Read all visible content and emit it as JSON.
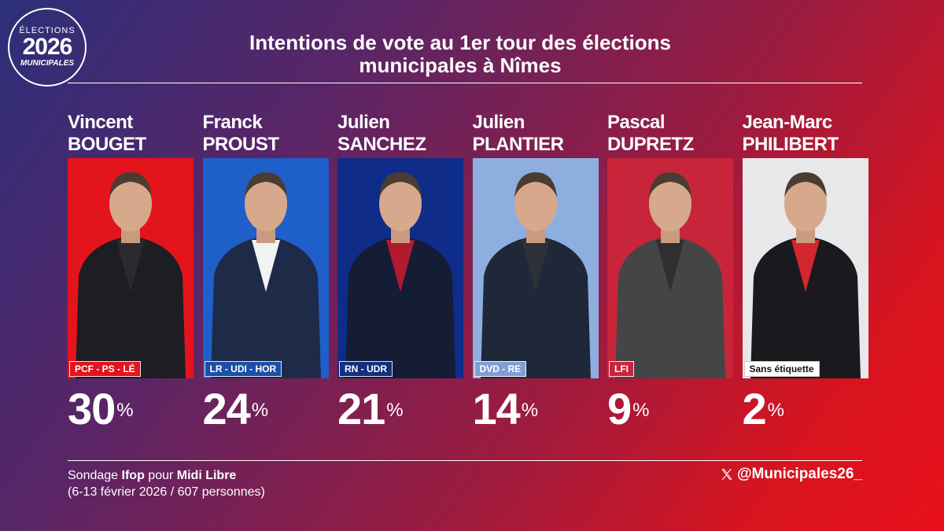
{
  "logo": {
    "line1": "ÉLECTIONS",
    "line2": "2026",
    "line3": "MUNICIPALES"
  },
  "title": {
    "line1": "Intentions de vote au 1er tour des élections",
    "line2": "municipales à Nîmes"
  },
  "chart_data": {
    "type": "bar",
    "title": "Intentions de vote au 1er tour des élections municipales à Nîmes",
    "unit": "%",
    "categories": [
      "Vincent BOUGET",
      "Franck PROUST",
      "Julien SANCHEZ",
      "Julien PLANTIER",
      "Pascal DUPRETZ",
      "Jean-Marc PHILIBERT"
    ],
    "values": [
      30,
      24,
      21,
      14,
      9,
      2
    ]
  },
  "candidates": [
    {
      "first": "Vincent",
      "last": "BOUGET",
      "party": "PCF - PS - LÉ",
      "value": "30",
      "sign": "%",
      "bg": "#e3141c",
      "party_bg": "#e3141c"
    },
    {
      "first": "Franck",
      "last": "PROUST",
      "party": "LR - UDI - HOR",
      "value": "24",
      "sign": "%",
      "bg": "#1e5fc9",
      "party_bg": "#1e4fa8"
    },
    {
      "first": "Julien",
      "last": "SANCHEZ",
      "party": "RN - UDR",
      "value": "21",
      "sign": "%",
      "bg": "#0f2c88",
      "party_bg": "#12307e"
    },
    {
      "first": "Julien",
      "last": "PLANTIER",
      "party": "DVD - RE",
      "value": "14",
      "sign": "%",
      "bg": "#8eaee0",
      "party_bg": "#7f9fd4"
    },
    {
      "first": "Pascal",
      "last": "DUPRETZ",
      "party": "LFI",
      "value": "9",
      "sign": "%",
      "bg": "#c8253a",
      "party_bg": "#c8253a"
    },
    {
      "first": "Jean-Marc",
      "last": "PHILIBERT",
      "party": "Sans étiquette",
      "value": "2",
      "sign": "%",
      "bg": "#e8e8ea",
      "party_bg": "#ffffff"
    }
  ],
  "footer": {
    "prefix": "Sondage ",
    "institute": "Ifop",
    "middle": " pour ",
    "media": "Midi Libre",
    "details": "(6-13 février 2026 / 607 personnes)",
    "handle": "@Municipales26_"
  }
}
